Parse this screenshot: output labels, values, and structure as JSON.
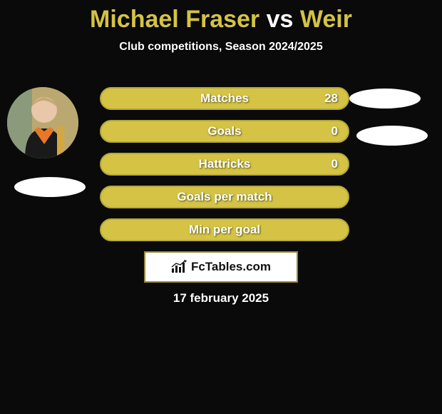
{
  "title": {
    "player1": "Michael Fraser",
    "vs": "vs",
    "player2": "Weir",
    "player1_color": "#d4c344",
    "vs_color": "#ffffff",
    "player2_color": "#d4c344"
  },
  "subtitle": "Club competitions, Season 2024/2025",
  "background_color": "#0a0a0a",
  "rows": [
    {
      "label": "Matches",
      "left": "",
      "right": "28",
      "bg": "#d4c344",
      "border": "#b5a838"
    },
    {
      "label": "Goals",
      "left": "",
      "right": "0",
      "bg": "#d4c344",
      "border": "#b5a838"
    },
    {
      "label": "Hattricks",
      "left": "",
      "right": "0",
      "bg": "#d4c344",
      "border": "#b5a838"
    },
    {
      "label": "Goals per match",
      "left": "",
      "right": "",
      "bg": "#d4c344",
      "border": "#b5a838"
    },
    {
      "label": "Min per goal",
      "left": "",
      "right": "",
      "bg": "#d4c344",
      "border": "#b5a838"
    }
  ],
  "logo_text": "FcTables.com",
  "logo_border_color": "#9a8a3a",
  "date": "17 february 2025",
  "oval_color": "#ffffff"
}
